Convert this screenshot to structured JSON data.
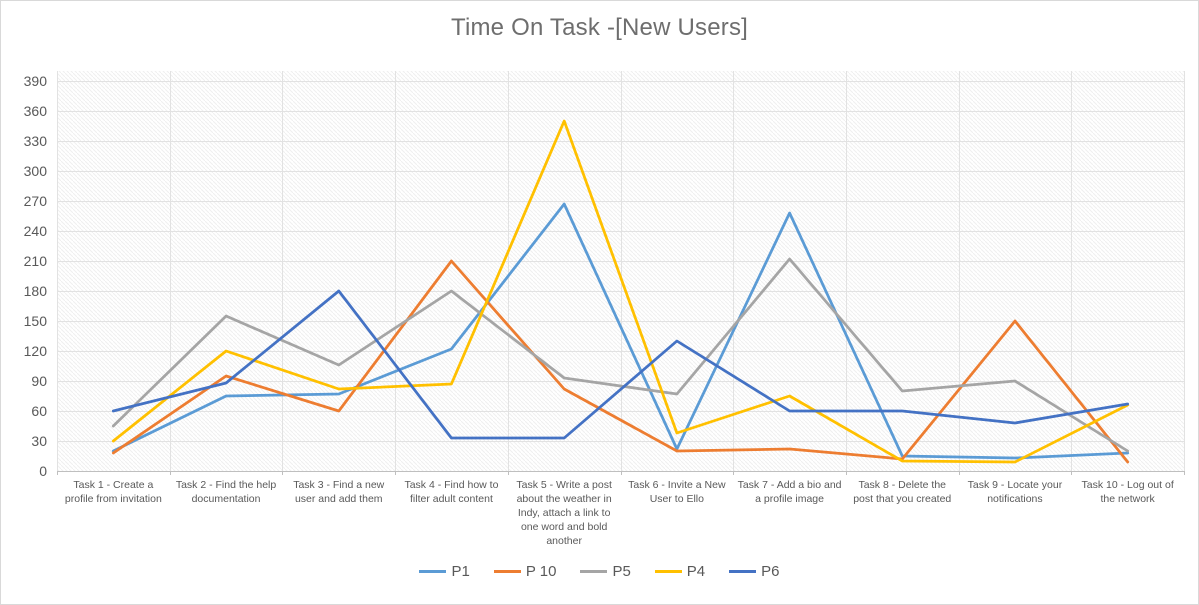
{
  "chart_data": {
    "type": "line",
    "title": "Time On Task -[New Users]",
    "categories": [
      "Task 1 - Create a profile from invitation",
      "Task 2 - Find the help documentation",
      "Task 3 - Find a new user and add them",
      "Task 4 - Find how to filter adult content",
      "Task 5 - Write a post about the weather in Indy, attach a link to one word and bold another",
      "Task 6 - Invite a New User to Ello",
      "Task 7 - Add a bio and a profile image",
      "Task 8 - Delete the post that you created",
      "Task 9 - Locate your notifications",
      "Task 10 - Log out of the network"
    ],
    "series": [
      {
        "name": "P1",
        "color": "#5B9BD5",
        "values": [
          20,
          75,
          77,
          122,
          267,
          22,
          258,
          15,
          13,
          18
        ]
      },
      {
        "name": "P 10",
        "color": "#ED7D31",
        "values": [
          18,
          95,
          60,
          210,
          82,
          20,
          22,
          12,
          150,
          9
        ]
      },
      {
        "name": "P5",
        "color": "#A5A5A5",
        "values": [
          45,
          155,
          106,
          180,
          93,
          77,
          212,
          80,
          90,
          20
        ]
      },
      {
        "name": "P4",
        "color": "#FFC000",
        "values": [
          30,
          120,
          82,
          87,
          350,
          38,
          75,
          10,
          9,
          66
        ]
      },
      {
        "name": "P6",
        "color": "#4472C4",
        "values": [
          60,
          88,
          180,
          33,
          33,
          130,
          60,
          60,
          48,
          67
        ]
      }
    ],
    "xlabel": "",
    "ylabel": "",
    "ylim": [
      0,
      400
    ],
    "yticks": [
      0,
      30,
      60,
      90,
      120,
      150,
      180,
      210,
      240,
      270,
      300,
      330,
      360,
      390
    ],
    "legend_position": "bottom",
    "grid": true,
    "plot_background": "diagonal-hatch"
  },
  "colors": {
    "hatch": "#efefef",
    "gridline": "#e2e2e2",
    "axis_line": "#bfbfbf",
    "tick": "#bfbfbf",
    "axis_text": "#595959",
    "title_text": "#6e6e6e",
    "frame_border": "#d9d9d9"
  }
}
